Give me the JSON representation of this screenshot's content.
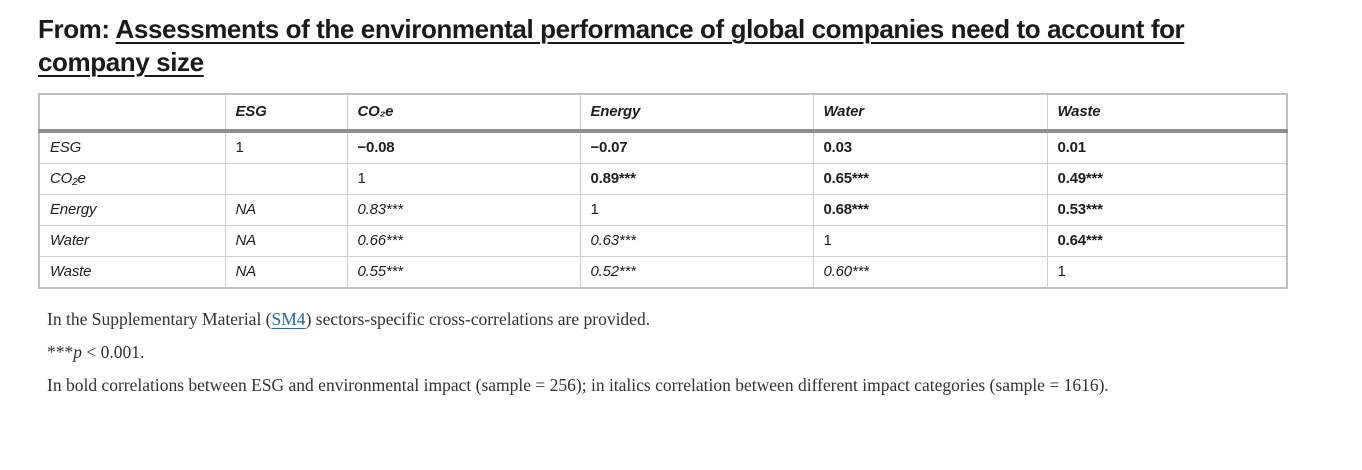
{
  "header": {
    "prefix": "From: ",
    "article_title": "Assessments of the environmental performance of global companies need to account for company size"
  },
  "table": {
    "columns": [
      "",
      "ESG",
      "CO₂e",
      "Energy",
      "Water",
      "Waste"
    ],
    "rows": [
      {
        "label": "ESG",
        "cells": [
          {
            "text": "1",
            "style": "plain"
          },
          {
            "text": "−0.08",
            "style": "bold"
          },
          {
            "text": "−0.07",
            "style": "bold"
          },
          {
            "text": "0.03",
            "style": "bold"
          },
          {
            "text": "0.01",
            "style": "bold"
          }
        ]
      },
      {
        "label": "CO₂e",
        "cells": [
          {
            "text": "",
            "style": "plain"
          },
          {
            "text": "1",
            "style": "plain"
          },
          {
            "text": "0.89***",
            "style": "bold"
          },
          {
            "text": "0.65***",
            "style": "bold"
          },
          {
            "text": "0.49***",
            "style": "bold"
          }
        ]
      },
      {
        "label": "Energy",
        "cells": [
          {
            "text": "NA",
            "style": "italic"
          },
          {
            "text": "0.83***",
            "style": "italic"
          },
          {
            "text": "1",
            "style": "plain"
          },
          {
            "text": "0.68***",
            "style": "bold"
          },
          {
            "text": "0.53***",
            "style": "bold"
          }
        ]
      },
      {
        "label": "Water",
        "cells": [
          {
            "text": "NA",
            "style": "italic"
          },
          {
            "text": "0.66***",
            "style": "italic"
          },
          {
            "text": "0.63***",
            "style": "italic"
          },
          {
            "text": "1",
            "style": "plain"
          },
          {
            "text": "0.64***",
            "style": "bold"
          }
        ]
      },
      {
        "label": "Waste",
        "cells": [
          {
            "text": "NA",
            "style": "italic"
          },
          {
            "text": "0.55***",
            "style": "italic"
          },
          {
            "text": "0.52***",
            "style": "italic"
          },
          {
            "text": "0.60***",
            "style": "italic"
          },
          {
            "text": "1",
            "style": "plain"
          }
        ]
      }
    ]
  },
  "footnotes": {
    "supplementary": {
      "pre": "In the Supplementary Material (",
      "link": "SM4",
      "post": ") sectors-specific cross-correlations are provided."
    },
    "significance": {
      "stars": "***",
      "symbol": "p",
      "rest": " < 0.001."
    },
    "formatting": "In bold correlations between ESG and environmental impact (sample = 256); in italics correlation between different impact categories (sample = 1616)."
  },
  "colors": {
    "ink": "#1a1a1a",
    "link_blue": "#1b6ca8",
    "header_rule_gray": "#8f8f8f",
    "table_border_gray": "#cfcfcf"
  }
}
